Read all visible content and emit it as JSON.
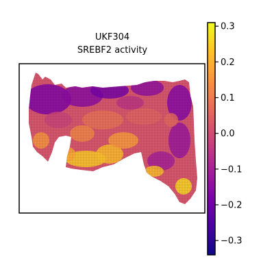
{
  "chart_data": {
    "type": "heatmap",
    "title_lines": [
      "UKF304",
      "SREBF2 activity"
    ],
    "colormap": "plasma",
    "colorbar": {
      "vmin": -0.34,
      "vmax": 0.31,
      "ticks": [
        0.3,
        0.2,
        0.1,
        0.0,
        -0.1,
        -0.2,
        -0.3
      ],
      "tick_labels": [
        "0.3",
        "0.2",
        "0.1",
        "0.0",
        "−0.1",
        "−0.2",
        "−0.3"
      ]
    },
    "grid": false,
    "axes_visible": false
  }
}
